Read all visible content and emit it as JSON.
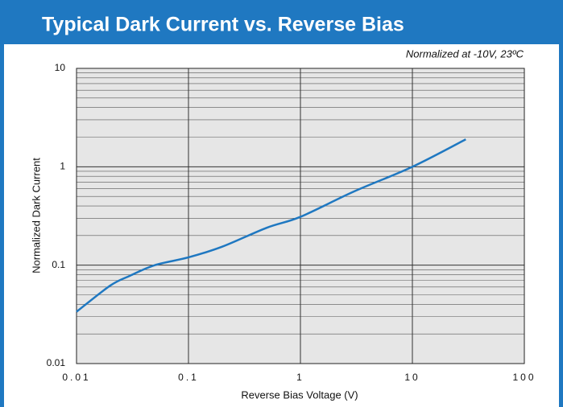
{
  "chart_data": {
    "type": "line",
    "title": "Typical Dark Current vs. Reverse Bias",
    "annotation": "Normalized at -10V, 23ºC",
    "xlabel": "Reverse Bias Voltage (V)",
    "ylabel": "Normalized Dark Current",
    "xscale": "log",
    "yscale": "log",
    "grid": true,
    "xlim": [
      0.01,
      100
    ],
    "ylim": [
      0.01,
      10
    ],
    "xticks": [
      0.01,
      0.1,
      1,
      10,
      100
    ],
    "yticks": [
      0.01,
      0.1,
      1,
      10
    ],
    "yminorticks": [
      0.02,
      0.03,
      0.04,
      0.05,
      0.06,
      0.07,
      0.08,
      0.09,
      0.2,
      0.3,
      0.4,
      0.5,
      0.6,
      0.7,
      0.8,
      0.9,
      2,
      3,
      4,
      5,
      6,
      7,
      8,
      9
    ],
    "series": [
      {
        "name": "Dark Current",
        "color": "#1f78c1",
        "x": [
          0.01,
          0.02,
          0.03,
          0.05,
          0.1,
          0.2,
          0.5,
          1,
          3,
          10,
          30
        ],
        "values": [
          0.0336,
          0.062,
          0.078,
          0.1,
          0.12,
          0.154,
          0.24,
          0.31,
          0.56,
          1.0,
          1.9
        ]
      }
    ]
  }
}
